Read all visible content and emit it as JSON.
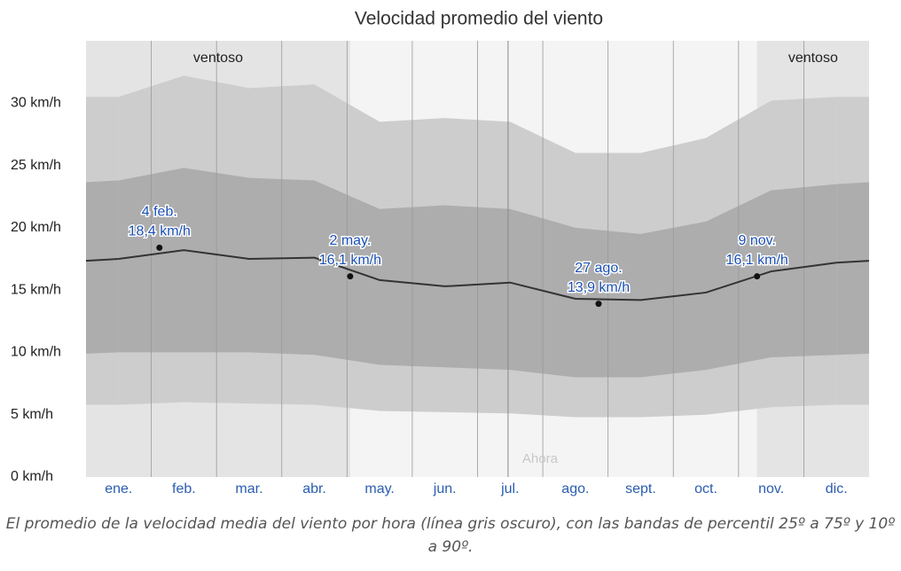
{
  "chart_data": {
    "type": "line",
    "title": "Velocidad promedio del viento",
    "categories": [
      "ene.",
      "feb.",
      "mar.",
      "abr.",
      "may.",
      "jun.",
      "jul.",
      "ago.",
      "sept.",
      "oct.",
      "nov.",
      "dic."
    ],
    "ylim": [
      0,
      35
    ],
    "yticks": [
      {
        "value": 0,
        "label": "0 km/h"
      },
      {
        "value": 5,
        "label": "5 km/h"
      },
      {
        "value": 10,
        "label": "10 km/h"
      },
      {
        "value": 15,
        "label": "15 km/h"
      },
      {
        "value": 20,
        "label": "20 km/h"
      },
      {
        "value": 25,
        "label": "25 km/h"
      },
      {
        "value": 30,
        "label": "30 km/h"
      }
    ],
    "bands": [
      {
        "color": "#cdcdcd",
        "low": [
          5.8,
          6.0,
          5.9,
          5.8,
          5.3,
          5.2,
          5.1,
          4.8,
          4.8,
          5.0,
          5.6,
          5.8
        ],
        "high": [
          30.5,
          32.2,
          31.2,
          31.5,
          28.5,
          28.8,
          28.5,
          26.0,
          26.0,
          27.2,
          30.2,
          30.5
        ]
      },
      {
        "color": "#adadad",
        "low": [
          10.0,
          10.0,
          10.0,
          9.8,
          9.0,
          8.8,
          8.6,
          8.0,
          8.0,
          8.6,
          9.6,
          9.8
        ],
        "high": [
          23.8,
          24.8,
          24.0,
          23.8,
          21.5,
          21.8,
          21.5,
          20.0,
          19.5,
          20.5,
          23.0,
          23.5
        ]
      }
    ],
    "line": {
      "color": "#333333",
      "values": [
        17.5,
        18.2,
        17.5,
        17.6,
        15.8,
        15.3,
        15.6,
        14.3,
        14.2,
        14.8,
        16.5,
        17.2
      ]
    },
    "annotations": [
      {
        "date": "4 feb.",
        "value": 18.4,
        "value_label": "18,4 km/h"
      },
      {
        "date": "2 may.",
        "value": 16.1,
        "value_label": "16,1 km/h"
      },
      {
        "date": "27 ago.",
        "value": 13.9,
        "value_label": "13,9 km/h"
      },
      {
        "date": "9 nov.",
        "value": 16.1,
        "value_label": "16,1 km/h"
      }
    ],
    "season_label": "ventoso",
    "now_label": "Ahora",
    "caption": "El promedio de la velocidad media del viento por hora (línea gris oscuro), con las bandas de percentil 25º a 75º y 10º a 90º."
  }
}
